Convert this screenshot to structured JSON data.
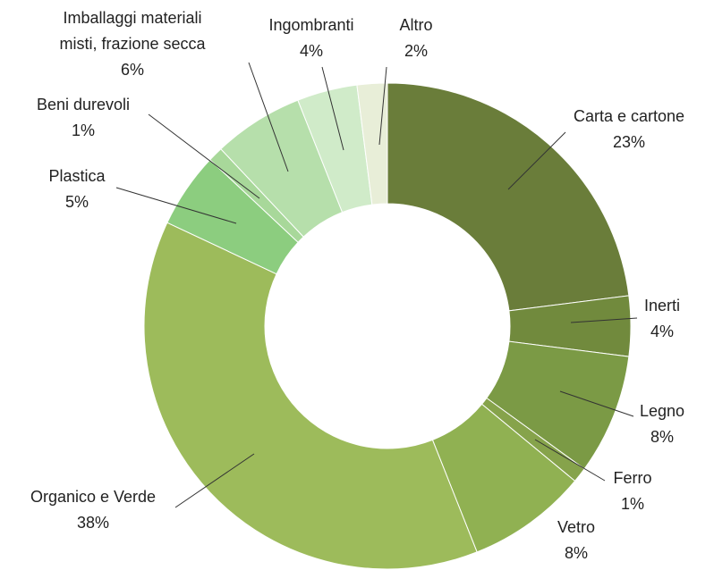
{
  "chart_data": {
    "type": "donut",
    "categories": [
      "Carta e cartone",
      "Inerti",
      "Legno",
      "Ferro",
      "Vetro",
      "Organico e Verde",
      "Plastica",
      "Beni durevoli",
      "Imballaggi materiali misti, frazione secca",
      "Ingombranti",
      "Altro"
    ],
    "values": [
      23,
      4,
      8,
      1,
      8,
      38,
      5,
      1,
      6,
      4,
      2
    ],
    "value_labels": [
      "23%",
      "4%",
      "8%",
      "1%",
      "8%",
      "38%",
      "5%",
      "1%",
      "6%",
      "4%",
      "2%"
    ],
    "colors": [
      "#6a7d3a",
      "#718a3d",
      "#7b9a45",
      "#86a34b",
      "#90b152",
      "#9dbb5b",
      "#8ccd7f",
      "#a8d89a",
      "#b6dfab",
      "#d0ebc9",
      "#e8eed8"
    ]
  }
}
